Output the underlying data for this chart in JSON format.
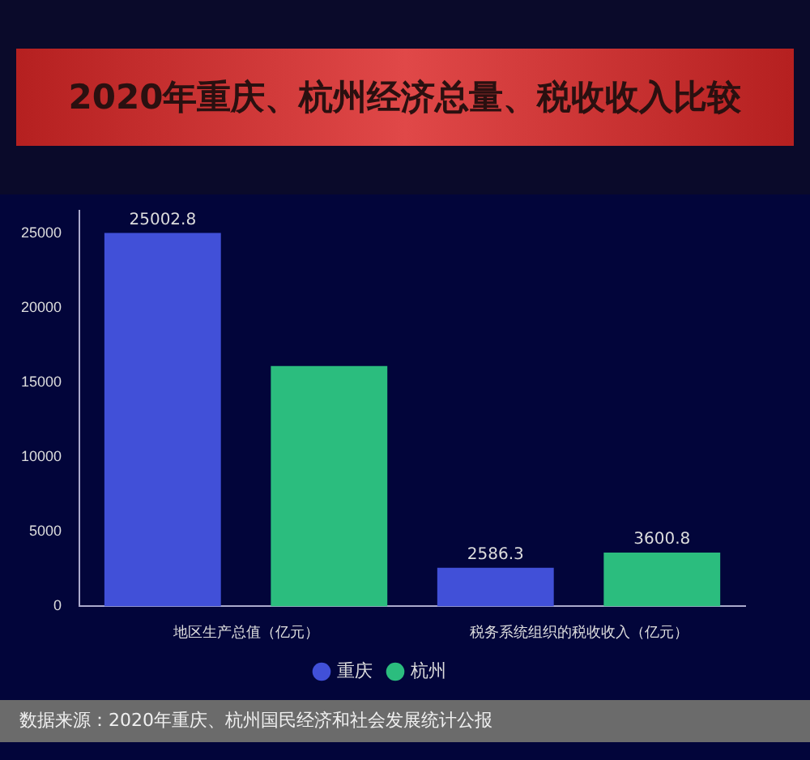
{
  "chart_data": {
    "type": "bar",
    "title": "2020年重庆、杭州经济总量、税收收入比较",
    "categories": [
      "地区生产总值（亿元）",
      "税务系统组织的税收收入（亿元）"
    ],
    "series": [
      {
        "name": "重庆",
        "color": "#4150d8",
        "values": [
          25002.8,
          2586.3
        ],
        "value_labels": [
          "25002.8",
          "2586.3"
        ]
      },
      {
        "name": "杭州",
        "color": "#2bbd7e",
        "values": [
          16100,
          3600.8
        ],
        "value_labels": [
          null,
          "3600.8"
        ]
      }
    ],
    "ylim": [
      0,
      26500
    ],
    "yticks": [
      0,
      5000,
      10000,
      15000,
      20000,
      25000
    ],
    "grid": false,
    "legend": "bottom",
    "annotations": [
      "数据来源：2020年重庆、杭州国民经济和社会发展统计公报"
    ]
  }
}
